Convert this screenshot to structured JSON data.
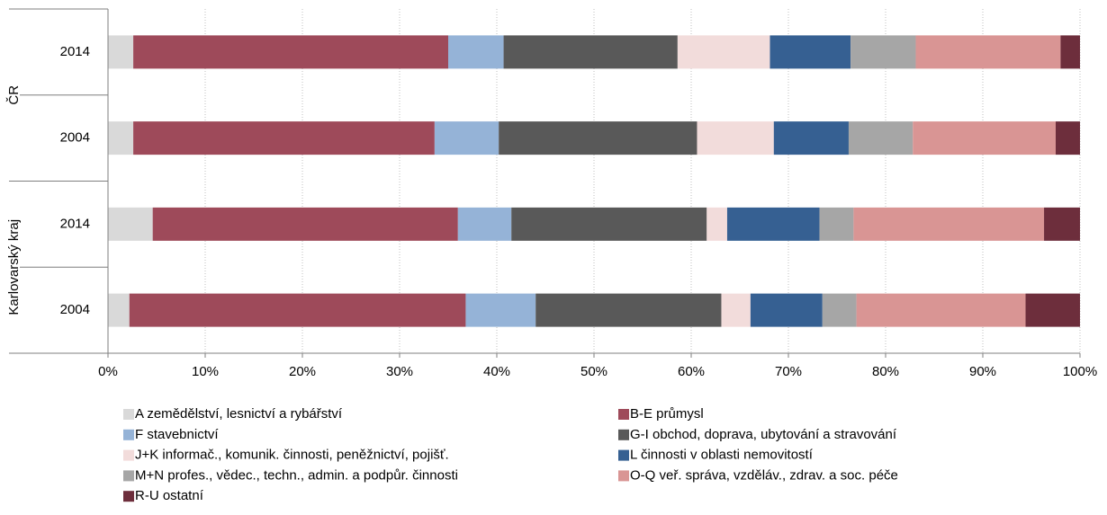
{
  "chart_data": {
    "type": "stacked_bar_horizontal",
    "categories": [
      "2014",
      "2004",
      "2014",
      "2004"
    ],
    "category_groups": [
      "ČR",
      "Karlovarský kraj"
    ],
    "xlim": [
      0,
      100
    ],
    "xticks": [
      {
        "value": 0,
        "label": "0%"
      },
      {
        "value": 10,
        "label": "10%"
      },
      {
        "value": 20,
        "label": "20%"
      },
      {
        "value": 30,
        "label": "30%"
      },
      {
        "value": 40,
        "label": "40%"
      },
      {
        "value": 50,
        "label": "50%"
      },
      {
        "value": 60,
        "label": "60%"
      },
      {
        "value": 70,
        "label": "70%"
      },
      {
        "value": 80,
        "label": "80%"
      },
      {
        "value": 90,
        "label": "90%"
      },
      {
        "value": 100,
        "label": "100%"
      }
    ],
    "grid": true,
    "legend": "bottom",
    "series": [
      {
        "name": "A  zemědělství, lesnictví a rybářství",
        "color": "#d9d9d9",
        "values": [
          2.6,
          2.6,
          4.6,
          2.2
        ]
      },
      {
        "name": "B-E  průmysl",
        "color": "#9e4a5a",
        "values": [
          32.4,
          31.0,
          31.4,
          34.6
        ]
      },
      {
        "name": "F  stavebnictví",
        "color": "#95b3d7",
        "values": [
          5.7,
          6.6,
          5.5,
          7.2
        ]
      },
      {
        "name": "G-I  obchod, doprava, ubytování a stravování",
        "color": "#595959",
        "values": [
          17.9,
          20.4,
          20.1,
          19.1
        ]
      },
      {
        "name": "J+K  informač., komunik. činnosti, peněžnictví, pojišť.",
        "color": "#f2dcdb",
        "values": [
          9.5,
          7.9,
          2.1,
          3.0
        ]
      },
      {
        "name": "L  činnosti v oblasti nemovitostí",
        "color": "#366092",
        "values": [
          8.3,
          7.7,
          9.5,
          7.4
        ]
      },
      {
        "name": "M+N  profes., vědec., techn., admin. a podpůr. činnosti",
        "color": "#a6a6a6",
        "values": [
          6.7,
          6.6,
          3.5,
          3.5
        ]
      },
      {
        "name": "O-Q  veř. správa, vzděláv., zdrav. a soc. péče",
        "color": "#d99594",
        "values": [
          14.9,
          14.7,
          19.6,
          17.4
        ]
      },
      {
        "name": "R-U  ostatní",
        "color": "#6d2e3c",
        "values": [
          2.0,
          2.5,
          3.7,
          5.6
        ]
      }
    ]
  }
}
